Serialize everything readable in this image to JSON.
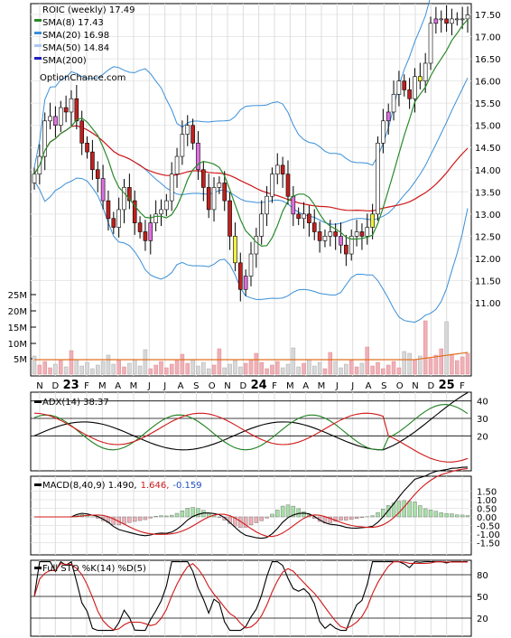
{
  "chart_data": {
    "type": "stock-chart",
    "symbol_label": "ROIC (weekly) 17.49",
    "source_label": "OptionChance.com",
    "legend": [
      {
        "label": "SMA(8) 17.43",
        "color": "#2a8a2a"
      },
      {
        "label": "SMA(20) 16.98",
        "color": "#3a8fd8"
      },
      {
        "label": "SMA(50) 14.84",
        "color": "#d01818"
      },
      {
        "label": "SMA(200)",
        "color": "#2020c0"
      }
    ],
    "price_axis": {
      "min": 10.5,
      "max": 17.6,
      "ticks": [
        "17.50",
        "17.00",
        "16.50",
        "16.00",
        "15.50",
        "15.00",
        "14.50",
        "14.00",
        "13.50",
        "13.00",
        "12.50",
        "12.00",
        "11.50",
        "11.00"
      ]
    },
    "volume_axis": {
      "ticks": [
        "25M",
        "20M",
        "15M",
        "10M",
        "5M"
      ]
    },
    "x_labels": [
      "N",
      "D",
      "23",
      "F",
      "M",
      "A",
      "M",
      "J",
      "J",
      "A",
      "S",
      "O",
      "N",
      "D",
      "24",
      "F",
      "M",
      "A",
      "M",
      "J",
      "J",
      "A",
      "S",
      "O",
      "N",
      "D",
      "25",
      "F"
    ],
    "price_close_weekly": [
      13.9,
      14.3,
      15.1,
      15.2,
      15.0,
      15.4,
      15.3,
      15.6,
      15.1,
      14.6,
      14.4,
      14.0,
      13.8,
      13.3,
      12.9,
      12.7,
      13.1,
      13.6,
      13.3,
      12.8,
      12.6,
      12.4,
      12.8,
      13.0,
      13.1,
      13.3,
      13.9,
      14.3,
      14.8,
      15.0,
      14.6,
      14.0,
      13.6,
      13.1,
      13.6,
      13.7,
      13.3,
      12.5,
      11.9,
      11.3,
      11.6,
      12.1,
      12.5,
      13.0,
      13.4,
      13.9,
      14.1,
      13.9,
      13.4,
      13.0,
      12.9,
      13.0,
      12.8,
      12.6,
      12.4,
      12.5,
      12.6,
      12.5,
      12.3,
      12.1,
      12.5,
      12.6,
      12.5,
      12.7,
      13.0,
      14.6,
      15.1,
      15.3,
      15.7,
      16.0,
      15.8,
      15.6,
      16.1,
      16.0,
      16.4,
      17.3,
      17.4,
      17.4,
      17.3,
      17.4,
      17.4,
      17.4,
      17.49
    ],
    "adx": {
      "label": "ADX(14) 38.37",
      "axis_ticks": [
        "40",
        "30",
        "20"
      ]
    },
    "macd": {
      "label": "MACD(8,40,9) 1.490,",
      "value2": "1.646,",
      "value3": "-0.159",
      "value2_color": "#d01818",
      "value3_color": "#2050c0",
      "axis_ticks": [
        "1.50",
        "1.00",
        "0.50",
        "0.00",
        "-0.50",
        "-1.00",
        "-1.50"
      ]
    },
    "stochastic": {
      "label": "Full STO %K(14) %D(5)",
      "axis_ticks": [
        "80",
        "50",
        "20"
      ]
    }
  }
}
